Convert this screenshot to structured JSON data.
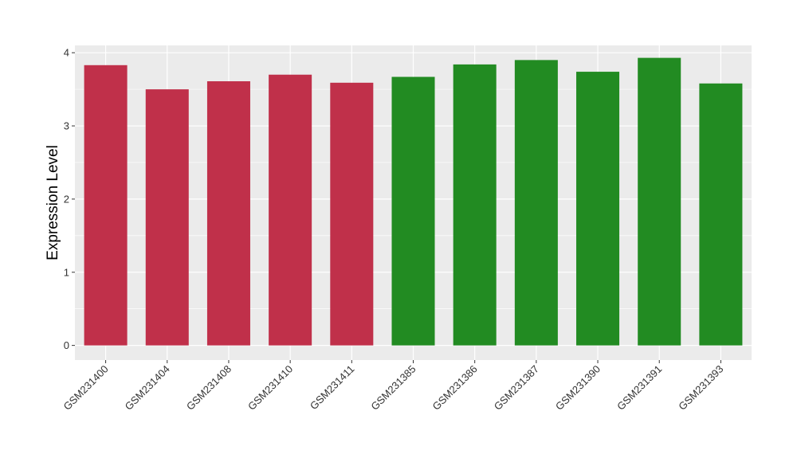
{
  "chart_data": {
    "type": "bar",
    "title": "",
    "xlabel": "",
    "ylabel": "Expression Level",
    "ylim": [
      -0.2,
      4.1
    ],
    "yticks": [
      0,
      1,
      2,
      3,
      4
    ],
    "categories": [
      "GSM231400",
      "GSM231404",
      "GSM231408",
      "GSM231410",
      "GSM231411",
      "GSM231385",
      "GSM231386",
      "GSM231387",
      "GSM231390",
      "GSM231391",
      "GSM231393"
    ],
    "values": [
      3.83,
      3.5,
      3.61,
      3.7,
      3.59,
      3.67,
      3.84,
      3.9,
      3.74,
      3.93,
      3.58
    ],
    "bar_colors": [
      "#c0304a",
      "#c0304a",
      "#c0304a",
      "#c0304a",
      "#c0304a",
      "#228b22",
      "#228b22",
      "#228b22",
      "#228b22",
      "#228b22",
      "#228b22"
    ],
    "grid": true,
    "legend": "none",
    "panel_background": "#ebebeb",
    "gridline_color": "#ffffff"
  }
}
